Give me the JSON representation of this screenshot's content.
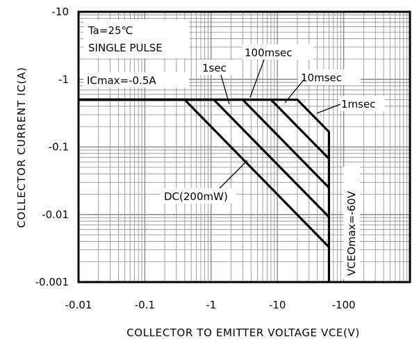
{
  "chart_data": {
    "type": "line",
    "title": "",
    "xlabel": "COLLECTOR  TO  EMITTER  VOLTAGE  VCE(V)",
    "ylabel": "COLLECTOR  CURRENT  IC(A)",
    "xscale": "log",
    "yscale": "log",
    "xlim": [
      -0.01,
      -1000
    ],
    "ylim": [
      -0.001,
      -10
    ],
    "xticks": [
      "-0.01",
      "-0.1",
      "-1",
      "-10",
      "-100"
    ],
    "yticks": [
      "-10",
      "-1",
      "-0.1",
      "-0.01",
      "-0.001"
    ],
    "grid": true,
    "conditions": [
      "Ta=25℃",
      "SINGLE PULSE"
    ],
    "annotations": {
      "icmax": "ICmax=-0.5A",
      "vceomax": "VCEOmax=-60V",
      "dc": "DC(200mW)",
      "t1s": "1sec",
      "t100ms": "100msec",
      "t10ms": "10msec",
      "t1ms": "1msec"
    },
    "series": [
      {
        "name": "DC(200mW)",
        "x": [
          -0.01,
          -0.4,
          -60
        ],
        "y": [
          -0.5,
          -0.5,
          -0.0033
        ]
      },
      {
        "name": "1sec",
        "x": [
          -0.01,
          -1.1,
          -60
        ],
        "y": [
          -0.5,
          -0.5,
          -0.0092
        ]
      },
      {
        "name": "100msec",
        "x": [
          -0.01,
          -3,
          -60
        ],
        "y": [
          -0.5,
          -0.5,
          -0.025
        ]
      },
      {
        "name": "10msec",
        "x": [
          -0.01,
          -8,
          -60
        ],
        "y": [
          -0.5,
          -0.5,
          -0.067
        ]
      },
      {
        "name": "1msec",
        "x": [
          -0.01,
          -20,
          -60,
          -60
        ],
        "y": [
          -0.5,
          -0.5,
          -0.167,
          -0.001
        ]
      }
    ]
  }
}
